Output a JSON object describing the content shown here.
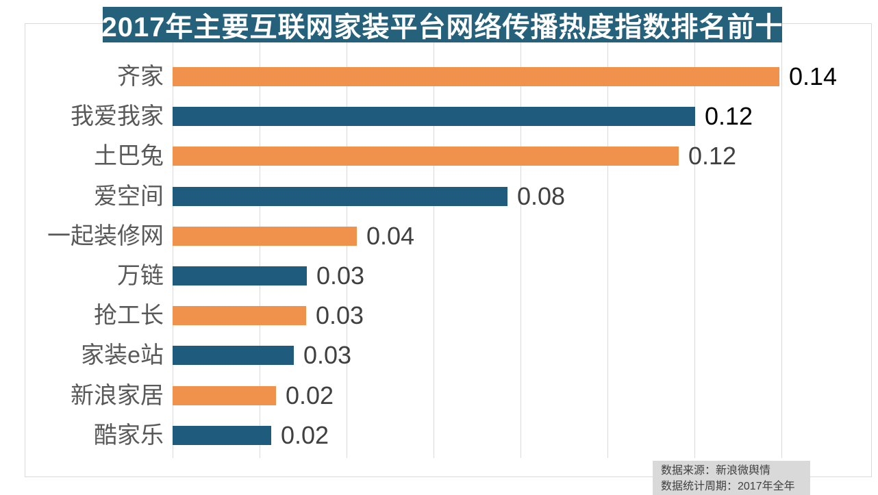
{
  "title_banner": {
    "text": "2017年主要互联网家装平台网络传播热度指数排名前十",
    "bg_color": "#26617C",
    "text_color": "#FFFFFF"
  },
  "chart_data": {
    "type": "bar",
    "orientation": "horizontal",
    "title": "2017年主要互联网家装平台网络传播热度指数排名前十",
    "categories": [
      "齐家",
      "我爱我家",
      "土巴兔",
      "爱空间",
      "一起装修网",
      "万链",
      "抢工长",
      "家装e站",
      "新浪家居",
      "酷家乐"
    ],
    "values": [
      0.1395,
      0.1202,
      0.1164,
      0.077,
      0.0424,
      0.0309,
      0.0307,
      0.0279,
      0.0238,
      0.0227
    ],
    "value_labels": [
      "0.14",
      "0.12",
      "0.12",
      "0.08",
      "0.04",
      "0.03",
      "0.03",
      "0.03",
      "0.02",
      "0.02"
    ],
    "bar_colors": [
      "#F0914C",
      "#1F5B7D",
      "#F0914C",
      "#1F5B7D",
      "#F0914C",
      "#1F5B7D",
      "#F0914C",
      "#1F5B7D",
      "#F0914C",
      "#1F5B7D"
    ],
    "value_label_colors": [
      "#000000",
      "#000000",
      "#404040",
      "#404040",
      "#404040",
      "#404040",
      "#404040",
      "#404040",
      "#404040",
      "#404040"
    ],
    "xlim": [
      0,
      0.161
    ],
    "gridline_step": 0.02,
    "grid": true,
    "legend": false,
    "data_labels": true
  },
  "source_note": {
    "line1": "数据来源：新浪微舆情",
    "line2": "数据统计周期：2017年全年"
  },
  "colors": {
    "orange": "#F0914C",
    "blue": "#1F5B7D",
    "grid": "#D9D9D9",
    "category_text": "#595959",
    "value_text": "#404040",
    "value_text_emphasis": "#000000",
    "source_bg": "#D9D9D9",
    "source_text": "#404040"
  }
}
